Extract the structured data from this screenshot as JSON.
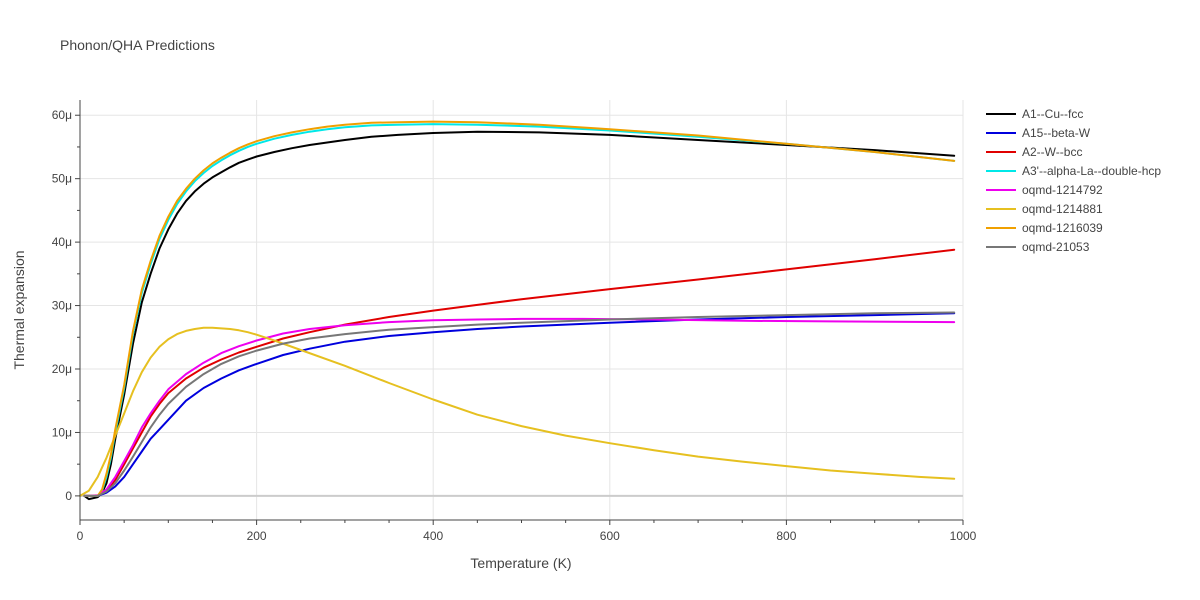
{
  "chart_data": {
    "type": "line",
    "title": "Phonon/QHA Predictions",
    "xlabel": "Temperature (K)",
    "ylabel": "Thermal expansion",
    "xlim": [
      0,
      1000
    ],
    "ylim": [
      -3.8e-06,
      6.24e-05
    ],
    "x_ticks": [
      0,
      200,
      400,
      600,
      800,
      1000
    ],
    "x_tick_labels": [
      "0",
      "200",
      "400",
      "600",
      "800",
      "1000"
    ],
    "y_ticks": [
      0,
      1e-05,
      2e-05,
      3e-05,
      4e-05,
      5e-05,
      6e-05
    ],
    "y_tick_labels": [
      "0",
      "10μ",
      "20μ",
      "30μ",
      "40μ",
      "50μ",
      "60μ"
    ],
    "grid": true,
    "legend_position": "top-right",
    "series": [
      {
        "name": "A1--Cu--fcc",
        "color": "#000000",
        "x": [
          5,
          10,
          20,
          25,
          30,
          35,
          40,
          50,
          60,
          70,
          80,
          90,
          100,
          110,
          120,
          130,
          140,
          150,
          160,
          170,
          180,
          190,
          200,
          220,
          240,
          260,
          280,
          300,
          330,
          360,
          400,
          450,
          520,
          600,
          700,
          800,
          900,
          990
        ],
        "y": [
          0,
          -5e-07,
          -2e-07,
          5e-07,
          2e-06,
          5e-06,
          9e-06,
          1.6e-05,
          2.4e-05,
          3.05e-05,
          3.5e-05,
          3.9e-05,
          4.2e-05,
          4.45e-05,
          4.65e-05,
          4.8e-05,
          4.92e-05,
          5.02e-05,
          5.1e-05,
          5.18e-05,
          5.25e-05,
          5.3e-05,
          5.35e-05,
          5.42e-05,
          5.48e-05,
          5.53e-05,
          5.57e-05,
          5.61e-05,
          5.66e-05,
          5.69e-05,
          5.72e-05,
          5.74e-05,
          5.73e-05,
          5.69e-05,
          5.61e-05,
          5.53e-05,
          5.45e-05,
          5.36e-05
        ]
      },
      {
        "name": "A15--beta-W",
        "color": "#0000dd",
        "x": [
          5,
          10,
          20,
          30,
          40,
          50,
          60,
          70,
          80,
          90,
          100,
          120,
          140,
          160,
          180,
          200,
          230,
          260,
          300,
          350,
          400,
          450,
          500,
          600,
          700,
          800,
          900,
          990
        ],
        "y": [
          0,
          0,
          0,
          5e-07,
          1.5e-06,
          3e-06,
          5e-06,
          7e-06,
          9e-06,
          1.05e-05,
          1.2e-05,
          1.5e-05,
          1.7e-05,
          1.85e-05,
          1.98e-05,
          2.08e-05,
          2.22e-05,
          2.32e-05,
          2.43e-05,
          2.52e-05,
          2.58e-05,
          2.63e-05,
          2.67e-05,
          2.73e-05,
          2.78e-05,
          2.82e-05,
          2.85e-05,
          2.88e-05
        ]
      },
      {
        "name": "A2--W--bcc",
        "color": "#e00000",
        "x": [
          5,
          10,
          20,
          30,
          40,
          50,
          60,
          70,
          80,
          90,
          100,
          120,
          140,
          160,
          180,
          200,
          230,
          260,
          300,
          350,
          400,
          450,
          500,
          600,
          700,
          800,
          900,
          990
        ],
        "y": [
          0,
          0,
          0,
          8e-07,
          2.5e-06,
          5e-06,
          7.5e-06,
          1e-05,
          1.25e-05,
          1.45e-05,
          1.62e-05,
          1.85e-05,
          2.02e-05,
          2.15e-05,
          2.26e-05,
          2.35e-05,
          2.48e-05,
          2.58e-05,
          2.7e-05,
          2.82e-05,
          2.92e-05,
          3.01e-05,
          3.1e-05,
          3.26e-05,
          3.41e-05,
          3.57e-05,
          3.73e-05,
          3.88e-05
        ]
      },
      {
        "name": "A3'--alpha-La--double-hcp",
        "color": "#00e8e8",
        "x": [
          5,
          10,
          20,
          25,
          30,
          35,
          40,
          50,
          60,
          70,
          80,
          90,
          100,
          110,
          120,
          130,
          140,
          150,
          160,
          170,
          180,
          190,
          200,
          220,
          240,
          260,
          280,
          300,
          330,
          360,
          400,
          450,
          520,
          600,
          700,
          800,
          900,
          990
        ],
        "y": [
          0,
          0,
          0,
          8e-07,
          3e-06,
          6e-06,
          1e-05,
          1.7e-05,
          2.55e-05,
          3.2e-05,
          3.65e-05,
          4.05e-05,
          4.35e-05,
          4.6e-05,
          4.8e-05,
          4.96e-05,
          5.09e-05,
          5.2e-05,
          5.29e-05,
          5.37e-05,
          5.44e-05,
          5.5e-05,
          5.55e-05,
          5.63e-05,
          5.69e-05,
          5.74e-05,
          5.78e-05,
          5.81e-05,
          5.84e-05,
          5.85e-05,
          5.86e-05,
          5.85e-05,
          5.82e-05,
          5.76e-05,
          5.66e-05,
          5.55e-05,
          5.42e-05,
          5.28e-05
        ]
      },
      {
        "name": "oqmd-1214792",
        "color": "#ee00ee",
        "x": [
          5,
          10,
          20,
          30,
          40,
          50,
          60,
          70,
          80,
          90,
          100,
          120,
          140,
          160,
          180,
          200,
          230,
          260,
          300,
          350,
          400,
          450,
          500,
          570,
          650,
          750,
          850,
          990
        ],
        "y": [
          0,
          0,
          1e-07,
          1e-06,
          3e-06,
          5.5e-06,
          8e-06,
          1.08e-05,
          1.3e-05,
          1.5e-05,
          1.68e-05,
          1.92e-05,
          2.1e-05,
          2.25e-05,
          2.36e-05,
          2.45e-05,
          2.56e-05,
          2.63e-05,
          2.69e-05,
          2.74e-05,
          2.77e-05,
          2.78e-05,
          2.79e-05,
          2.79e-05,
          2.78e-05,
          2.76e-05,
          2.75e-05,
          2.74e-05
        ]
      },
      {
        "name": "oqmd-1214881",
        "color": "#e6c020",
        "x": [
          0,
          10,
          20,
          30,
          40,
          50,
          60,
          70,
          80,
          90,
          100,
          110,
          120,
          130,
          140,
          150,
          160,
          170,
          180,
          190,
          200,
          220,
          250,
          300,
          350,
          400,
          450,
          500,
          550,
          600,
          650,
          700,
          750,
          800,
          850,
          900,
          950,
          990
        ],
        "y": [
          0,
          8e-07,
          3e-06,
          6e-06,
          9.5e-06,
          1.3e-05,
          1.65e-05,
          1.95e-05,
          2.18e-05,
          2.35e-05,
          2.47e-05,
          2.55e-05,
          2.6e-05,
          2.63e-05,
          2.65e-05,
          2.65e-05,
          2.64e-05,
          2.63e-05,
          2.61e-05,
          2.58e-05,
          2.54e-05,
          2.45e-05,
          2.3e-05,
          2.05e-05,
          1.78e-05,
          1.52e-05,
          1.28e-05,
          1.1e-05,
          9.5e-06,
          8.3e-06,
          7.2e-06,
          6.2e-06,
          5.4e-06,
          4.7e-06,
          4e-06,
          3.5e-06,
          3e-06,
          2.7e-06
        ]
      },
      {
        "name": "oqmd-1216039",
        "color": "#f0a000",
        "x": [
          5,
          10,
          20,
          25,
          30,
          35,
          40,
          50,
          60,
          70,
          80,
          90,
          100,
          110,
          120,
          130,
          140,
          150,
          160,
          170,
          180,
          190,
          200,
          220,
          240,
          260,
          280,
          300,
          330,
          360,
          400,
          450,
          520,
          600,
          700,
          800,
          900,
          990
        ],
        "y": [
          0,
          0,
          0,
          1e-06,
          3.5e-06,
          6.5e-06,
          1.05e-05,
          1.75e-05,
          2.6e-05,
          3.25e-05,
          3.7e-05,
          4.1e-05,
          4.4e-05,
          4.65e-05,
          4.84e-05,
          5e-05,
          5.13e-05,
          5.24e-05,
          5.33e-05,
          5.41e-05,
          5.48e-05,
          5.54e-05,
          5.59e-05,
          5.67e-05,
          5.73e-05,
          5.78e-05,
          5.82e-05,
          5.85e-05,
          5.88e-05,
          5.89e-05,
          5.9e-05,
          5.89e-05,
          5.85e-05,
          5.78e-05,
          5.68e-05,
          5.55e-05,
          5.42e-05,
          5.28e-05
        ]
      },
      {
        "name": "oqmd-21053",
        "color": "#777777",
        "x": [
          5,
          10,
          20,
          30,
          40,
          50,
          60,
          70,
          80,
          90,
          100,
          120,
          140,
          160,
          180,
          200,
          230,
          260,
          300,
          350,
          400,
          450,
          500,
          600,
          700,
          800,
          900,
          990
        ],
        "y": [
          0,
          0,
          0,
          7e-07,
          2e-06,
          4e-06,
          6.2e-06,
          8.5e-06,
          1.08e-05,
          1.28e-05,
          1.45e-05,
          1.72e-05,
          1.92e-05,
          2.08e-05,
          2.2e-05,
          2.29e-05,
          2.4e-05,
          2.48e-05,
          2.55e-05,
          2.62e-05,
          2.66e-05,
          2.7e-05,
          2.73e-05,
          2.78e-05,
          2.82e-05,
          2.85e-05,
          2.88e-05,
          2.89e-05
        ]
      }
    ]
  }
}
